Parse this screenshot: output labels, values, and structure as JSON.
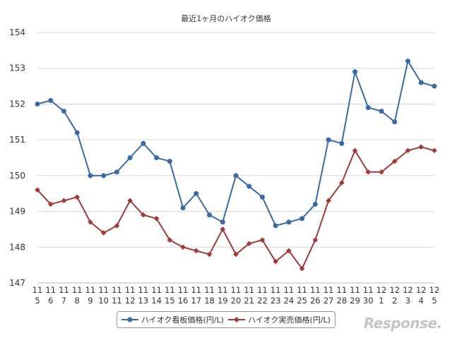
{
  "chart_data": {
    "type": "line",
    "title": "最近1ヶ月のハイオク価格",
    "xlabel": "",
    "ylabel": "",
    "ylim": [
      147,
      154
    ],
    "yticks": [
      "147",
      "148",
      "149",
      "150",
      "151",
      "152",
      "153",
      "154"
    ],
    "categories": [
      {
        "month": "11",
        "day": "5"
      },
      {
        "month": "11",
        "day": "6"
      },
      {
        "month": "11",
        "day": "7"
      },
      {
        "month": "11",
        "day": "8"
      },
      {
        "month": "11",
        "day": "9"
      },
      {
        "month": "11",
        "day": "10"
      },
      {
        "month": "11",
        "day": "11"
      },
      {
        "month": "11",
        "day": "12"
      },
      {
        "month": "11",
        "day": "13"
      },
      {
        "month": "11",
        "day": "14"
      },
      {
        "month": "11",
        "day": "15"
      },
      {
        "month": "11",
        "day": "16"
      },
      {
        "month": "11",
        "day": "17"
      },
      {
        "month": "11",
        "day": "18"
      },
      {
        "month": "11",
        "day": "19"
      },
      {
        "month": "11",
        "day": "20"
      },
      {
        "month": "11",
        "day": "21"
      },
      {
        "month": "11",
        "day": "22"
      },
      {
        "month": "11",
        "day": "23"
      },
      {
        "month": "11",
        "day": "24"
      },
      {
        "month": "11",
        "day": "25"
      },
      {
        "month": "11",
        "day": "26"
      },
      {
        "month": "11",
        "day": "27"
      },
      {
        "month": "11",
        "day": "28"
      },
      {
        "month": "11",
        "day": "29"
      },
      {
        "month": "11",
        "day": "30"
      },
      {
        "month": "12",
        "day": "1"
      },
      {
        "month": "12",
        "day": "2"
      },
      {
        "month": "12",
        "day": "3"
      },
      {
        "month": "12",
        "day": "4"
      },
      {
        "month": "12",
        "day": "5"
      }
    ],
    "series": [
      {
        "name": "ハイオク看板価格(円/L)",
        "color": "#3a6aa5",
        "marker": "circle",
        "values": [
          152.0,
          152.1,
          151.8,
          151.2,
          150.0,
          150.0,
          150.1,
          150.5,
          150.9,
          150.5,
          150.4,
          149.1,
          149.5,
          148.9,
          148.7,
          150.0,
          149.7,
          149.4,
          148.6,
          148.7,
          148.8,
          149.2,
          151.0,
          150.9,
          152.9,
          151.9,
          151.8,
          151.5,
          153.2,
          152.6,
          152.5
        ]
      },
      {
        "name": "ハイオク実売価格(円/L)",
        "color": "#a03a3a",
        "marker": "diamond",
        "values": [
          149.6,
          149.2,
          149.3,
          149.4,
          148.7,
          148.4,
          148.6,
          149.3,
          148.9,
          148.8,
          148.2,
          148.0,
          147.9,
          147.8,
          148.5,
          147.8,
          148.1,
          148.2,
          147.6,
          147.9,
          147.4,
          148.2,
          149.3,
          149.8,
          150.7,
          150.1,
          150.1,
          150.4,
          150.7,
          150.8,
          150.7
        ]
      }
    ],
    "grid": true,
    "legend_position": "bottom-center"
  },
  "watermark": "Response."
}
